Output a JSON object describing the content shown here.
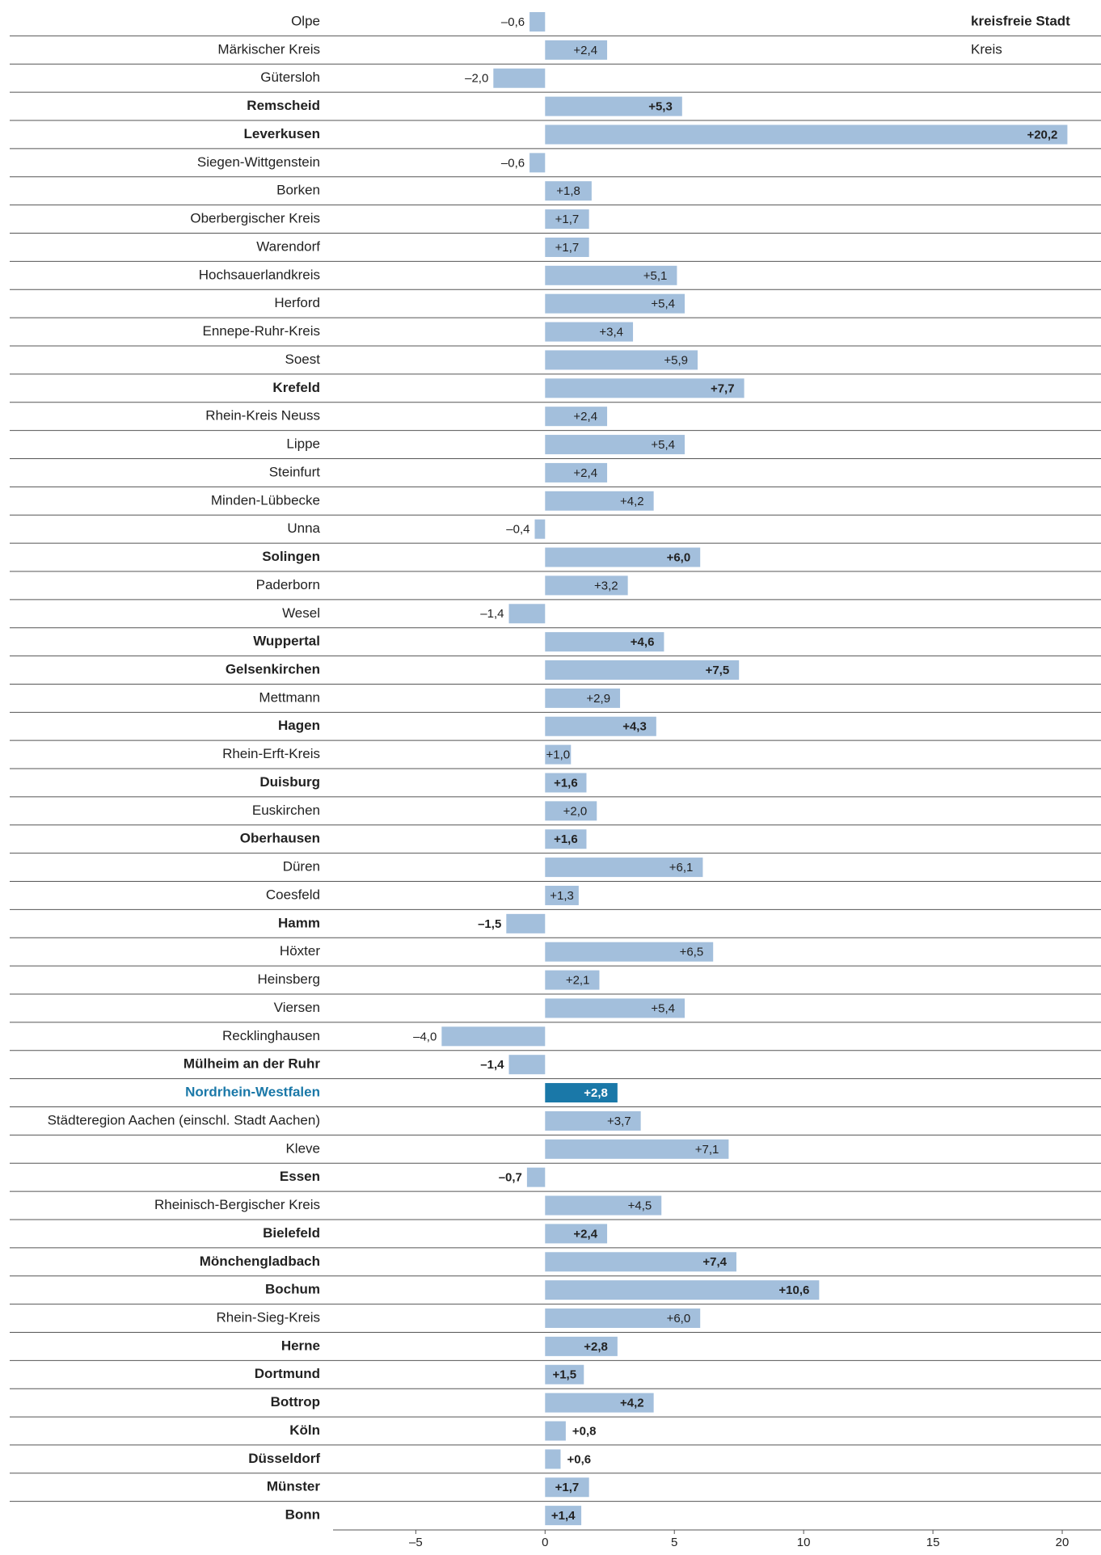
{
  "chart_data": {
    "type": "hbar",
    "legend": [
      "kreisfreie Stadt",
      "Kreis"
    ],
    "categories": [
      "Olpe",
      "Märkischer Kreis",
      "Gütersloh",
      "Remscheid",
      "Leverkusen",
      "Siegen-Wittgenstein",
      "Borken",
      "Oberbergischer Kreis",
      "Warendorf",
      "Hochsauerlandkreis",
      "Herford",
      "Ennepe-Ruhr-Kreis",
      "Soest",
      "Krefeld",
      "Rhein-Kreis Neuss",
      "Lippe",
      "Steinfurt",
      "Minden-Lübbecke",
      "Unna",
      "Solingen",
      "Paderborn",
      "Wesel",
      "Wuppertal",
      "Gelsenkirchen",
      "Mettmann",
      "Hagen",
      "Rhein-Erft-Kreis",
      "Duisburg",
      "Euskirchen",
      "Oberhausen",
      "Düren",
      "Coesfeld",
      "Hamm",
      "Höxter",
      "Heinsberg",
      "Viersen",
      "Recklinghausen",
      "Mülheim an der Ruhr",
      "Nordrhein-Westfalen",
      "Städteregion Aachen (einschl. Stadt Aachen)",
      "Kleve",
      "Essen",
      "Rheinisch-Bergischer Kreis",
      "Bielefeld",
      "Mönchengladbach",
      "Bochum",
      "Rhein-Sieg-Kreis",
      "Herne",
      "Dortmund",
      "Bottrop",
      "Köln",
      "Düsseldorf",
      "Münster",
      "Bonn"
    ],
    "values": [
      -0.6,
      2.4,
      -2.0,
      5.3,
      20.2,
      -0.6,
      1.8,
      1.7,
      1.7,
      5.1,
      5.4,
      3.4,
      5.9,
      7.7,
      2.4,
      5.4,
      2.4,
      4.2,
      -0.4,
      6.0,
      3.2,
      -1.4,
      4.6,
      7.5,
      2.9,
      4.3,
      1.0,
      1.6,
      2.0,
      1.6,
      6.1,
      1.3,
      -1.5,
      6.5,
      2.1,
      5.4,
      -4.0,
      -1.4,
      2.8,
      3.7,
      7.1,
      -0.7,
      4.5,
      2.4,
      7.4,
      10.6,
      6.0,
      2.8,
      1.5,
      4.2,
      0.8,
      0.6,
      1.7,
      1.4
    ],
    "value_labels": [
      "–0,6",
      "+2,4",
      "–2,0",
      "+5,3",
      "+20,2",
      "–0,6",
      "+1,8",
      "+1,7",
      "+1,7",
      "+5,1",
      "+5,4",
      "+3,4",
      "+5,9",
      "+7,7",
      "+2,4",
      "+5,4",
      "+2,4",
      "+4,2",
      "–0,4",
      "+6,0",
      "+3,2",
      "–1,4",
      "+4,6",
      "+7,5",
      "+2,9",
      "+4,3",
      "+1,0",
      "+1,6",
      "+2,0",
      "+1,6",
      "+6,1",
      "+1,3",
      "–1,5",
      "+6,5",
      "+2,1",
      "+5,4",
      "–4,0",
      "–1,4",
      "+2,8",
      "+3,7",
      "+7,1",
      "–0,7",
      "+4,5",
      "+2,4",
      "+7,4",
      "+10,6",
      "+6,0",
      "+2,8",
      "+1,5",
      "+4,2",
      "+0,8",
      "+0,6",
      "+1,7",
      "+1,4"
    ],
    "emphasis": [
      false,
      false,
      false,
      true,
      true,
      false,
      false,
      false,
      false,
      false,
      false,
      false,
      false,
      true,
      false,
      false,
      false,
      false,
      false,
      true,
      false,
      false,
      true,
      true,
      false,
      true,
      false,
      true,
      false,
      true,
      false,
      false,
      true,
      false,
      false,
      false,
      false,
      true,
      true,
      false,
      false,
      true,
      false,
      true,
      true,
      true,
      false,
      true,
      true,
      true,
      true,
      true,
      true,
      true
    ],
    "color": "#a3bfdc",
    "highlight": {
      "index": 38,
      "color": "#1a78a8"
    },
    "xlim": [
      -8.2,
      21.5
    ],
    "xticks": [
      {
        "value": -5,
        "label": "–5"
      },
      0,
      5,
      10,
      15,
      20
    ]
  }
}
